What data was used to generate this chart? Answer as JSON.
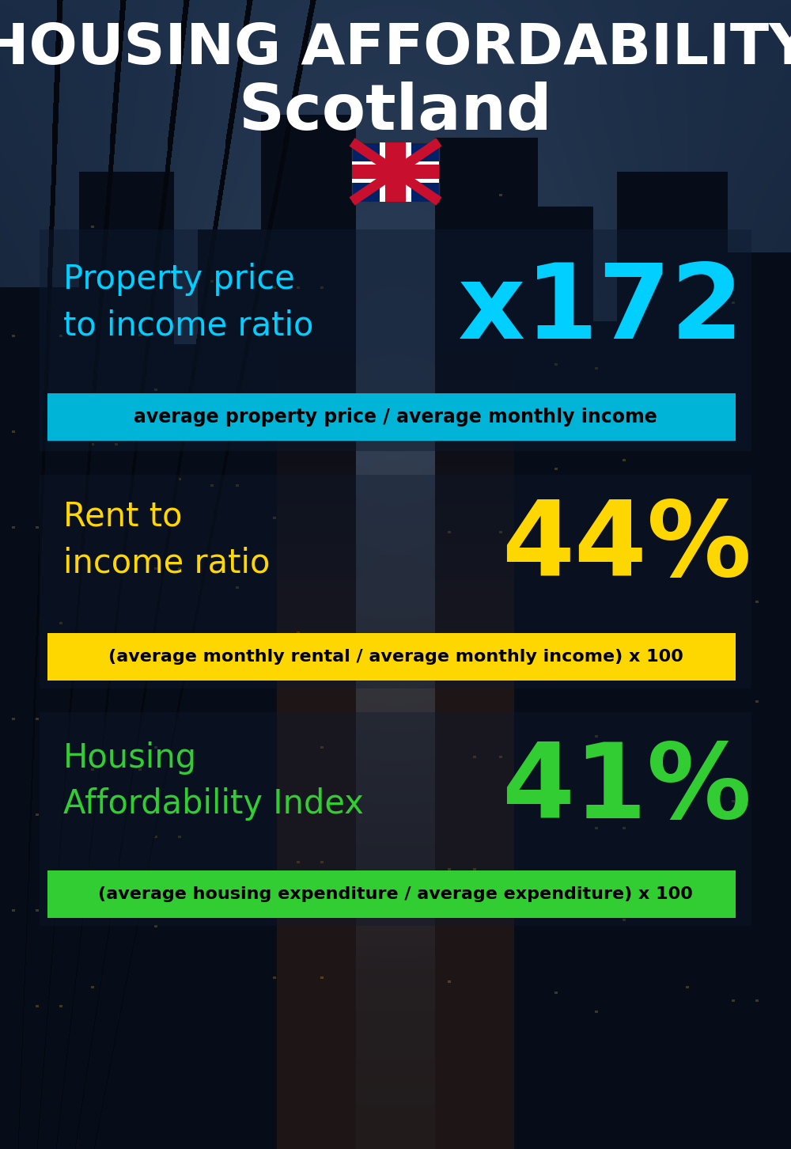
{
  "title_line1": "HOUSING AFFORDABILITY",
  "title_line2": "Scotland",
  "section1_label": "Property price\nto income ratio",
  "section1_value": "x172",
  "section1_sublabel": "average property price / average monthly income",
  "section1_label_color": "#00cfff",
  "section1_value_color": "#00cfff",
  "section1_banner_color": "#00b4d8",
  "section1_banner_text_color": "#000000",
  "section2_label": "Rent to\nincome ratio",
  "section2_value": "44%",
  "section2_sublabel": "(average monthly rental / average monthly income) x 100",
  "section2_label_color": "#ffd700",
  "section2_value_color": "#ffd700",
  "section2_banner_color": "#ffd700",
  "section2_banner_text_color": "#000000",
  "section3_label": "Housing\nAffordability Index",
  "section3_value": "41%",
  "section3_sublabel": "(average housing expenditure / average expenditure) x 100",
  "section3_label_color": "#32cd32",
  "section3_value_color": "#32cd32",
  "section3_banner_color": "#32cd32",
  "section3_banner_text_color": "#000000",
  "background_color": "#080e18",
  "title_color": "#ffffff"
}
